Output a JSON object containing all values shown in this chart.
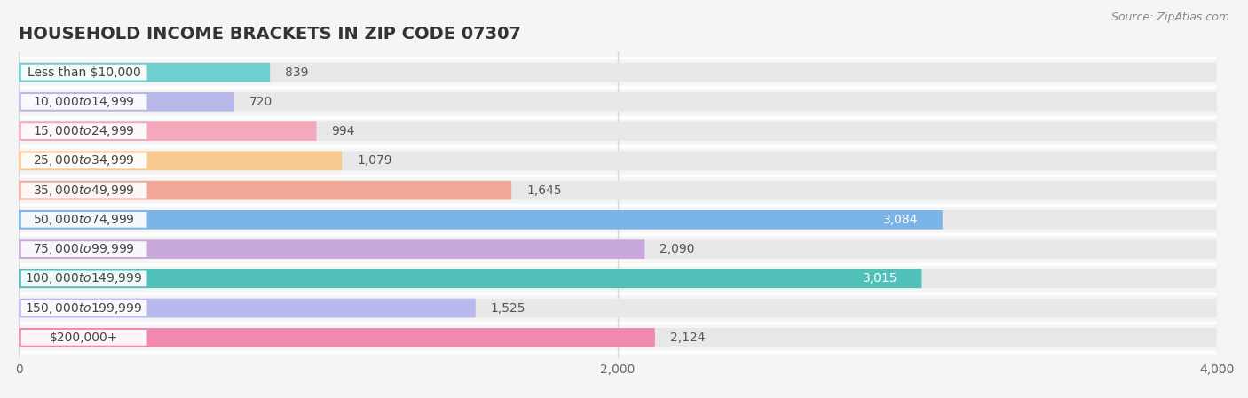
{
  "title": "HOUSEHOLD INCOME BRACKETS IN ZIP CODE 07307",
  "source": "Source: ZipAtlas.com",
  "categories": [
    "Less than $10,000",
    "$10,000 to $14,999",
    "$15,000 to $24,999",
    "$25,000 to $34,999",
    "$35,000 to $49,999",
    "$50,000 to $74,999",
    "$75,000 to $99,999",
    "$100,000 to $149,999",
    "$150,000 to $199,999",
    "$200,000+"
  ],
  "values": [
    839,
    720,
    994,
    1079,
    1645,
    3084,
    2090,
    3015,
    1525,
    2124
  ],
  "bar_colors": [
    "#6ecfcf",
    "#b8b8e8",
    "#f5a8bc",
    "#f8ca90",
    "#f2a898",
    "#7ab4e8",
    "#c8a8dc",
    "#50c0b8",
    "#b8b8ec",
    "#f088b0"
  ],
  "background_color": "#f5f5f5",
  "bar_background_color": "#e8e8e8",
  "xlim": [
    0,
    4000
  ],
  "xticks": [
    0,
    2000,
    4000
  ],
  "title_fontsize": 14,
  "label_fontsize": 10,
  "value_fontsize": 10,
  "source_fontsize": 9,
  "bar_height": 0.65,
  "label_pill_color": "#ffffff",
  "value_inside_threshold": 3000
}
